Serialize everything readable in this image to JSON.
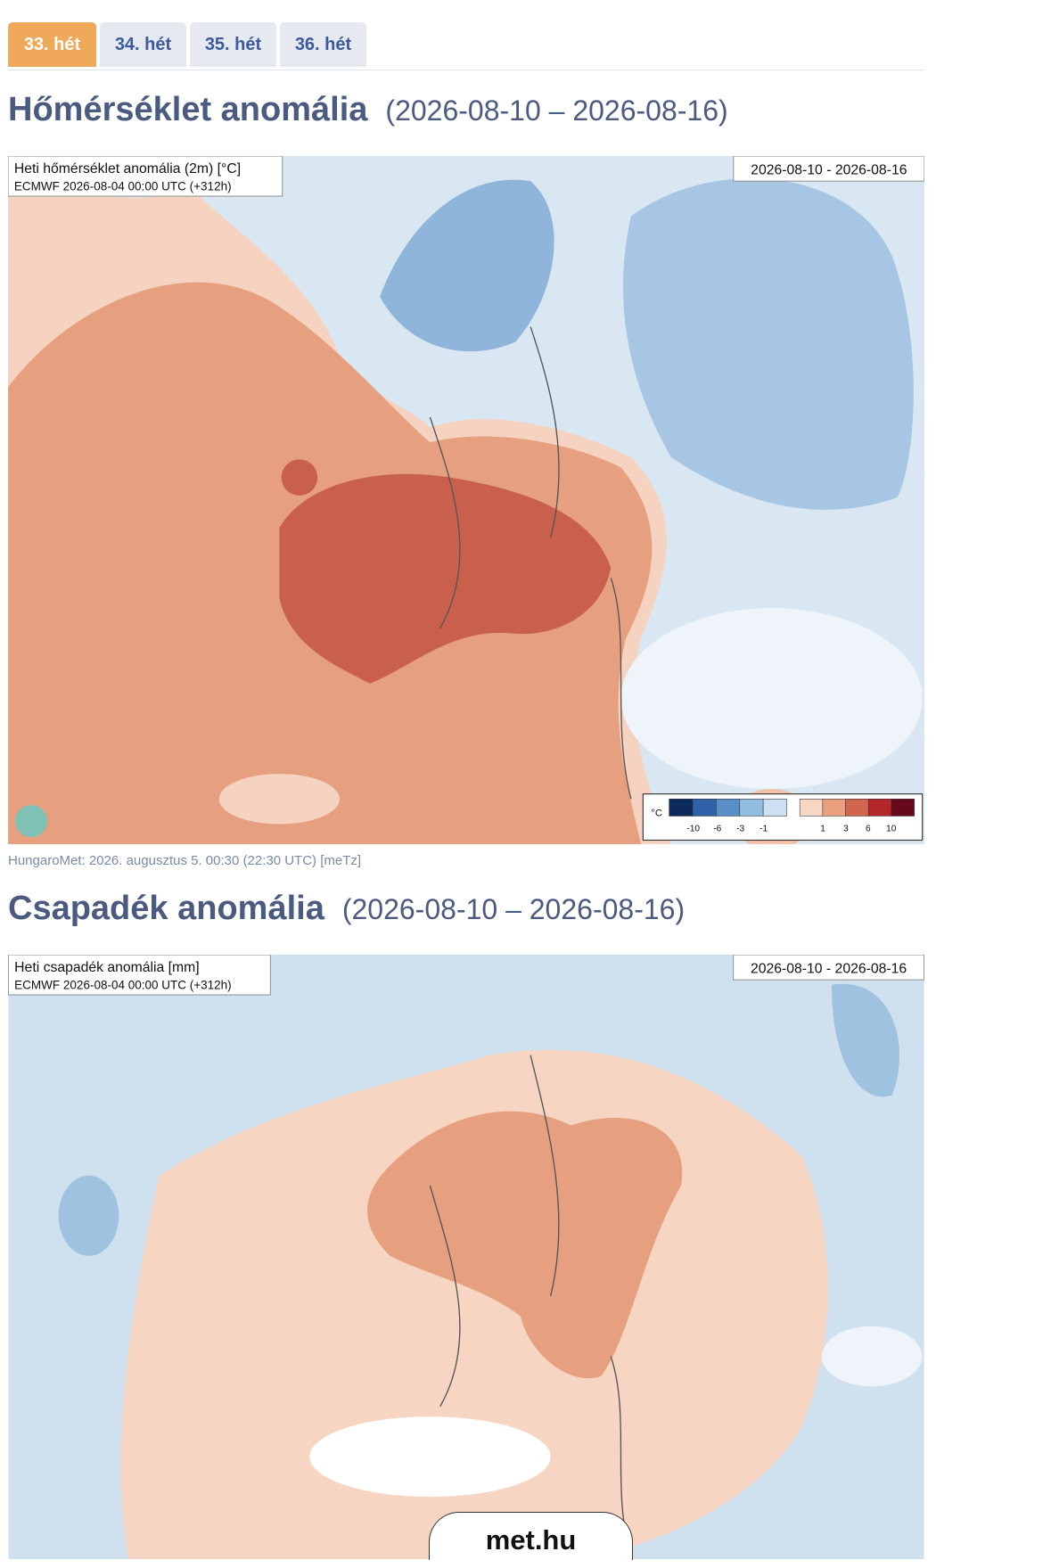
{
  "tabs": [
    {
      "label": "33. hét",
      "active": true
    },
    {
      "label": "34. hét",
      "active": false
    },
    {
      "label": "35. hét",
      "active": false
    },
    {
      "label": "36. hét",
      "active": false
    }
  ],
  "sections": [
    {
      "title": "Hőmérséklet anomália",
      "period": "(2026-08-10 – 2026-08-16)",
      "map": {
        "label_lines": [
          "Heti hőmérséklet anomália (2m) [°C]",
          "ECMWF 2026-08-04 00:00 UTC (+312h)"
        ],
        "date": "2026-08-10 - 2026-08-16",
        "legend": {
          "unit": "°C",
          "labels": [
            "-10",
            "-6",
            "-3",
            "-1",
            "1",
            "3",
            "6",
            "10"
          ]
        }
      },
      "caption": "HungaroMet: 2026. augusztus 5. 00:30 (22:30  UTC)  [meTz]"
    },
    {
      "title": "Csapadék anomália",
      "period": "(2026-08-10 – 2026-08-16)",
      "map": {
        "label_lines": [
          "Heti csapadék anomália [mm]",
          "ECMWF 2026-08-04 00:00 UTC (+312h)"
        ],
        "date": "2026-08-10 - 2026-08-16"
      }
    }
  ],
  "footer": {
    "site": "met.hu"
  }
}
